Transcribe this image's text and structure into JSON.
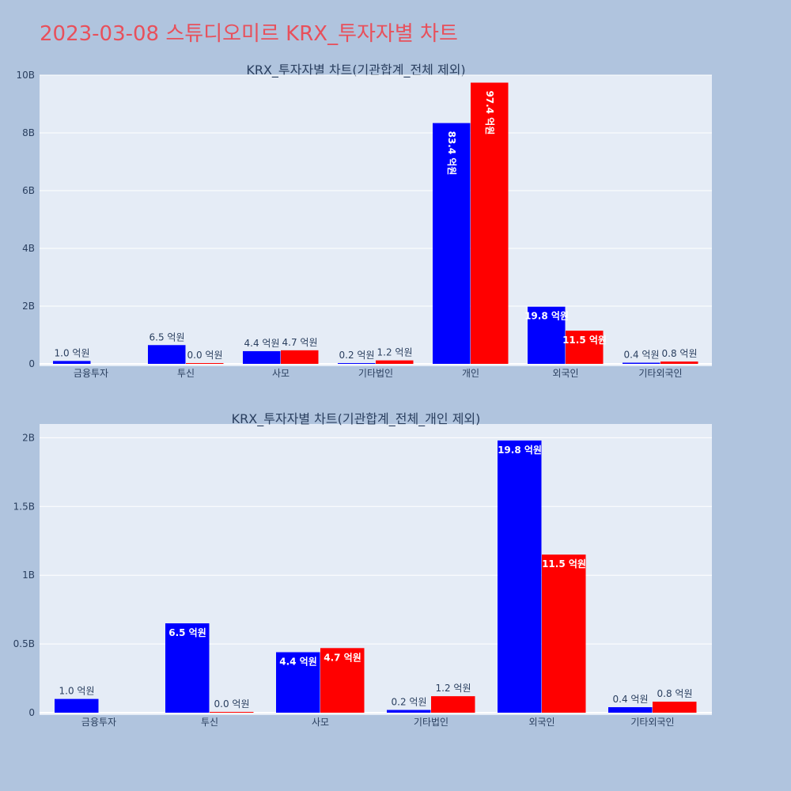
{
  "page_title": "2023-03-08 스튜디오미르 KRX_투자자별 차트",
  "colors": {
    "background": "#b0c4de",
    "plot_bg": "#e5ecf6",
    "series_1": "#0000ff",
    "series_2": "#ff0000",
    "title": "#e8505b"
  },
  "chart_data": [
    {
      "type": "bar",
      "title": "KRX_투자자별 차트(기관합계_전체 제외)",
      "categories": [
        "금융투자",
        "투신",
        "사모",
        "기타법인",
        "개인",
        "외국인",
        "기타외국인"
      ],
      "ylim": [
        0,
        10000000000
      ],
      "yticks": [
        0,
        2000000000,
        4000000000,
        6000000000,
        8000000000,
        10000000000
      ],
      "ytick_labels": [
        "0",
        "2B",
        "4B",
        "6B",
        "8B",
        "10B"
      ],
      "grid": true,
      "series": [
        {
          "values": [
            100000000,
            650000000,
            440000000,
            20000000,
            8340000000,
            1980000000,
            40000000
          ],
          "labels": [
            "1.0 억원",
            "6.5 억원",
            "4.4 억원",
            "0.2 억원",
            "83.4 억원",
            "19.8 억원",
            "0.4 억원"
          ]
        },
        {
          "values": [
            0,
            2000000,
            470000000,
            120000000,
            9740000000,
            1150000000,
            80000000
          ],
          "labels": [
            "",
            "0.0 억원",
            "4.7 억원",
            "1.2 억원",
            "97.4 억원",
            "11.5 억원",
            "0.8 억원"
          ]
        }
      ]
    },
    {
      "type": "bar",
      "title": "KRX_투자자별 차트(기관합계_전체_개인 제외)",
      "categories": [
        "금융투자",
        "투신",
        "사모",
        "기타법인",
        "외국인",
        "기타외국인"
      ],
      "ylim": [
        0,
        2100000000
      ],
      "yticks": [
        0,
        500000000,
        1000000000,
        1500000000,
        2000000000
      ],
      "ytick_labels": [
        "0",
        "0.5B",
        "1B",
        "1.5B",
        "2B"
      ],
      "grid": true,
      "series": [
        {
          "values": [
            100000000,
            650000000,
            440000000,
            20000000,
            1980000000,
            40000000
          ],
          "labels": [
            "1.0 억원",
            "6.5 억원",
            "4.4 억원",
            "0.2 억원",
            "19.8 억원",
            "0.4 억원"
          ]
        },
        {
          "values": [
            0,
            2000000,
            470000000,
            120000000,
            1150000000,
            80000000
          ],
          "labels": [
            "",
            "0.0 억원",
            "4.7 억원",
            "1.2 억원",
            "11.5 억원",
            "0.8 억원"
          ]
        }
      ]
    }
  ]
}
